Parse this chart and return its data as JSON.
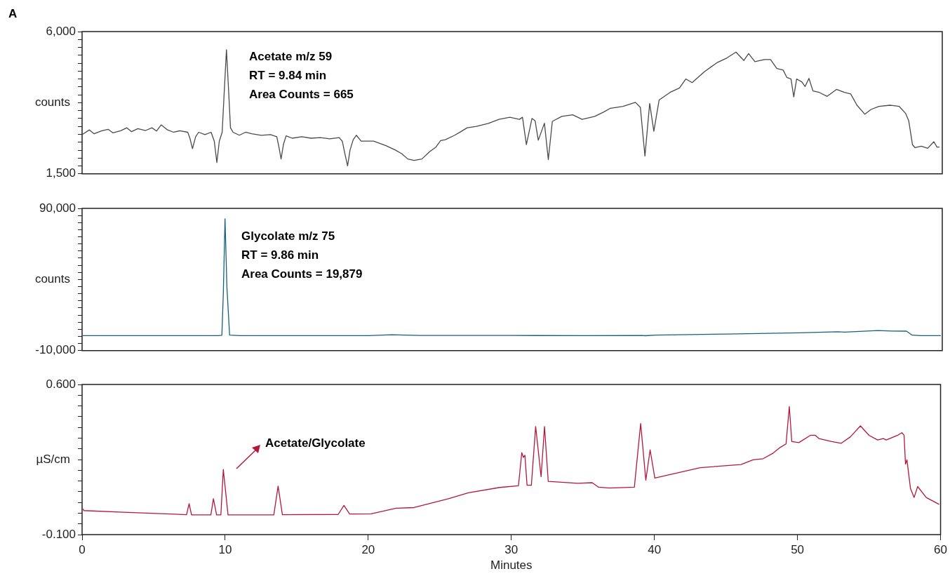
{
  "chart_data": [
    {
      "type": "line",
      "title": "A",
      "ylabel": "counts",
      "color": "#4a4a4a",
      "marker": "none",
      "tick_labels": "y",
      "annotations": [
        "Acetate m/z 59",
        "RT = 9.84 min",
        "Area Counts = 665"
      ],
      "xlim": [
        0,
        60
      ],
      "xticks": [
        0,
        10,
        20,
        30,
        40,
        50,
        60
      ],
      "ylim": [
        1500,
        6000
      ],
      "yticks": [
        {
          "value": 1500,
          "label": "1,500"
        },
        {
          "value": 1750,
          "label": null
        },
        {
          "value": 2000,
          "label": null
        },
        {
          "value": 2250,
          "label": null
        },
        {
          "value": 2500,
          "label": null
        },
        {
          "value": 2750,
          "label": null
        },
        {
          "value": 3000,
          "label": null
        },
        {
          "value": 3250,
          "label": null
        },
        {
          "value": 3500,
          "label": null
        },
        {
          "value": 3750,
          "label": null
        },
        {
          "value": 4000,
          "label": null
        },
        {
          "value": 4250,
          "label": null
        },
        {
          "value": 4500,
          "label": null
        },
        {
          "value": 4750,
          "label": null
        },
        {
          "value": 5000,
          "label": null
        },
        {
          "value": 5250,
          "label": null
        },
        {
          "value": 5500,
          "label": null
        },
        {
          "value": 5750,
          "label": null
        },
        {
          "value": 6000,
          "label": "6,000"
        }
      ],
      "x": [
        0.03,
        0.51,
        0.84,
        1.38,
        1.82,
        2.14,
        2.69,
        3.12,
        3.45,
        3.89,
        4.43,
        4.87,
        5.19,
        5.52,
        5.96,
        6.39,
        6.82,
        7.37,
        7.52,
        7.7,
        7.92,
        8.13,
        8.57,
        9.0,
        9.22,
        9.4,
        9.57,
        9.77,
        9.92,
        10.07,
        10.22,
        10.35,
        10.53,
        10.97,
        11.4,
        11.83,
        12.49,
        13.14,
        13.58,
        13.73,
        13.88,
        14.05,
        14.23,
        14.66,
        15.32,
        15.97,
        16.62,
        17.28,
        17.93,
        18.15,
        18.32,
        18.52,
        18.69,
        18.91,
        19.13,
        19.46,
        20.33,
        21.2,
        21.85,
        22.29,
        22.72,
        23.16,
        23.7,
        24.25,
        24.68,
        25.01,
        25.34,
        25.99,
        26.42,
        26.86,
        27.51,
        28.34,
        29.08,
        29.84,
        30.5,
        30.72,
        30.99,
        31.38,
        31.6,
        31.82,
        32.25,
        32.52,
        32.8,
        33.46,
        34.22,
        34.88,
        35.76,
        36.41,
        36.85,
        37.73,
        38.6,
        38.94,
        39.26,
        39.59,
        39.88,
        40.25,
        41.01,
        41.67,
        42.11,
        42.55,
        43.42,
        44.3,
        44.96,
        45.61,
        46.16,
        46.49,
        46.93,
        47.59,
        48.02,
        48.46,
        48.9,
        49.16,
        49.45,
        49.64,
        49.84,
        50.21,
        50.43,
        50.7,
        50.98,
        51.42,
        51.97,
        52.62,
        53.17,
        53.61,
        54.05,
        54.6,
        55.03,
        55.58,
        56.35,
        57.0,
        57.44,
        57.66,
        57.92,
        58.1,
        58.54,
        58.98,
        59.41,
        59.63,
        59.81
      ],
      "values": [
        2749,
        2890,
        2768,
        2862,
        2909,
        2797,
        2862,
        2957,
        2835,
        2928,
        2871,
        2957,
        2854,
        3050,
        2890,
        2816,
        2862,
        2816,
        2627,
        2299,
        2675,
        2816,
        2740,
        2816,
        2534,
        1857,
        2534,
        2816,
        4130,
        5426,
        4130,
        2957,
        2816,
        2721,
        2816,
        2768,
        2721,
        2740,
        2675,
        2345,
        1970,
        2440,
        2703,
        2627,
        2675,
        2627,
        2646,
        2608,
        2646,
        2534,
        2158,
        1754,
        2252,
        2580,
        2721,
        2534,
        2534,
        2393,
        2252,
        2139,
        1970,
        1924,
        1970,
        2206,
        2345,
        2553,
        2580,
        2721,
        2835,
        2957,
        3003,
        3098,
        3224,
        3291,
        3224,
        3291,
        2423,
        3253,
        3178,
        2564,
        3102,
        1950,
        3159,
        3319,
        3367,
        3224,
        3319,
        3462,
        3575,
        3632,
        3762,
        3603,
        2063,
        3727,
        2848,
        3838,
        4076,
        4217,
        4501,
        4387,
        4736,
        5020,
        5161,
        5350,
        5085,
        5302,
        5047,
        5115,
        5115,
        4831,
        4782,
        4547,
        4501,
        3933,
        4501,
        4406,
        4263,
        4520,
        4122,
        4076,
        3952,
        4170,
        4076,
        4027,
        3670,
        3386,
        3537,
        3632,
        3670,
        3632,
        3413,
        3178,
        2423,
        2328,
        2374,
        2309,
        2517,
        2347,
        2347
      ]
    },
    {
      "type": "line",
      "ylabel": "counts",
      "color": "#17607c",
      "marker": "none",
      "tick_labels": "y",
      "annotations": [
        "Glycolate m/z 75",
        "RT = 9.86 min",
        "Area Counts = 19,879"
      ],
      "xlim": [
        0,
        60
      ],
      "xticks": [
        0,
        10,
        20,
        30,
        40,
        50,
        60
      ],
      "ylim": [
        -10000,
        90000
      ],
      "yticks": [
        {
          "value": -10000,
          "label": "-10,000"
        },
        {
          "value": -5000,
          "label": null
        },
        {
          "value": 0,
          "label": null
        },
        {
          "value": 5000,
          "label": null
        },
        {
          "value": 10000,
          "label": null
        },
        {
          "value": 15000,
          "label": null
        },
        {
          "value": 20000,
          "label": null
        },
        {
          "value": 25000,
          "label": null
        },
        {
          "value": 30000,
          "label": null
        },
        {
          "value": 35000,
          "label": null
        },
        {
          "value": 40000,
          "label": null
        },
        {
          "value": 45000,
          "label": null
        },
        {
          "value": 50000,
          "label": null
        },
        {
          "value": 55000,
          "label": null
        },
        {
          "value": 60000,
          "label": null
        },
        {
          "value": 65000,
          "label": null
        },
        {
          "value": 70000,
          "label": null
        },
        {
          "value": 75000,
          "label": null
        },
        {
          "value": 80000,
          "label": null
        },
        {
          "value": 85000,
          "label": null
        },
        {
          "value": 90000,
          "label": "90,000"
        }
      ],
      "x": [
        0.05,
        5,
        9.5,
        9.75,
        9.85,
        9.97,
        10.1,
        10.29,
        11,
        15,
        20,
        21.6,
        23.5,
        30,
        35,
        39,
        39.3,
        40,
        45,
        50,
        52.7,
        53.2,
        55.5,
        56.5,
        57.5,
        57.9,
        58.5,
        59.9
      ],
      "values": [
        550,
        560,
        560,
        800,
        30000,
        82700,
        35000,
        900,
        550,
        520,
        580,
        1200,
        700,
        650,
        600,
        650,
        500,
        900,
        1700,
        2500,
        3300,
        3000,
        4100,
        3800,
        3700,
        900,
        550,
        600
      ]
    },
    {
      "type": "line",
      "ylabel": "µS/cm",
      "xlabel": "Minutes",
      "color": "#b5173a",
      "marker": "none",
      "annotations": [
        "Acetate/Glycolate"
      ],
      "xlim": [
        0,
        60
      ],
      "xticks": [
        0,
        10,
        20,
        30,
        40,
        50,
        60
      ],
      "ylim": [
        -0.1,
        0.6
      ],
      "yticks": [
        {
          "value": -0.1,
          "label": "-0.100"
        },
        {
          "value": -0.05,
          "label": null
        },
        {
          "value": 0,
          "label": null
        },
        {
          "value": 0.05,
          "label": null
        },
        {
          "value": 0.1,
          "label": null
        },
        {
          "value": 0.15,
          "label": null
        },
        {
          "value": 0.2,
          "label": null
        },
        {
          "value": 0.25,
          "label": null
        },
        {
          "value": 0.3,
          "label": null
        },
        {
          "value": 0.35,
          "label": null
        },
        {
          "value": 0.4,
          "label": null
        },
        {
          "value": 0.45,
          "label": null
        },
        {
          "value": 0.5,
          "label": null
        },
        {
          "value": 0.55,
          "label": null
        },
        {
          "value": 0.6,
          "label": "0.600"
        }
      ],
      "x": [
        0.07,
        0.12,
        2.9,
        7.3,
        7.48,
        7.65,
        9.0,
        9.18,
        9.4,
        9.7,
        9.87,
        10.2,
        13.4,
        13.7,
        14.0,
        17.9,
        18.3,
        18.7,
        20.2,
        21.95,
        23.2,
        25.6,
        27.0,
        29.2,
        30.5,
        30.73,
        30.85,
        30.95,
        31.1,
        31.4,
        31.7,
        32.08,
        32.32,
        32.58,
        34.66,
        35.65,
        36.1,
        36.85,
        38.6,
        39.04,
        39.4,
        39.7,
        40.03,
        43.2,
        46.05,
        46.9,
        47.6,
        48.3,
        48.8,
        49.2,
        49.43,
        49.6,
        50.1,
        50.9,
        51.25,
        51.5,
        52.4,
        53.06,
        53.7,
        54.4,
        55.0,
        55.6,
        56.0,
        56.2,
        57.0,
        57.3,
        57.45,
        57.55,
        57.65,
        57.9,
        58.15,
        58.4,
        59.0,
        59.9
      ],
      "values": [
        0.02,
        0.012,
        0.004,
        -0.007,
        0.044,
        -0.008,
        -0.008,
        0.067,
        -0.008,
        -0.008,
        0.204,
        -0.008,
        -0.008,
        0.126,
        -0.007,
        -0.006,
        0.036,
        -0.004,
        -0.003,
        0.023,
        0.026,
        0.067,
        0.095,
        0.12,
        0.128,
        0.282,
        0.26,
        0.27,
        0.13,
        0.13,
        0.404,
        0.17,
        0.404,
        0.148,
        0.139,
        0.142,
        0.121,
        0.117,
        0.121,
        0.418,
        0.154,
        0.295,
        0.164,
        0.212,
        0.227,
        0.249,
        0.254,
        0.28,
        0.307,
        0.323,
        0.497,
        0.334,
        0.329,
        0.363,
        0.363,
        0.348,
        0.334,
        0.326,
        0.356,
        0.407,
        0.363,
        0.341,
        0.348,
        0.341,
        0.363,
        0.375,
        0.363,
        0.229,
        0.249,
        0.114,
        0.073,
        0.124,
        0.073,
        0.041
      ]
    }
  ]
}
